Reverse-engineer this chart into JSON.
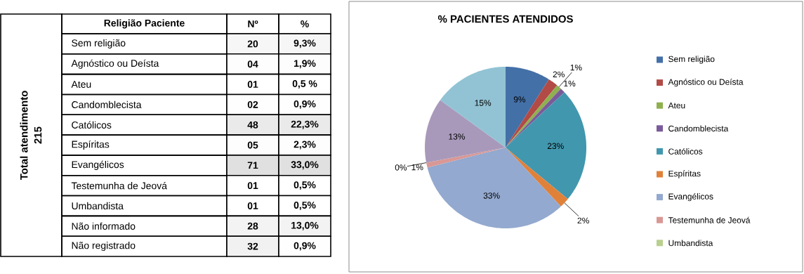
{
  "chart_data": [
    {
      "type": "heatmap",
      "ylabel": "Total atendimento",
      "annotations": [
        "Religião Paciente",
        "215"
      ],
      "categories": [
        "Nº",
        "%"
      ],
      "y_categories": [
        "Sem religião",
        "Agnóstico ou Deísta",
        "Ateu",
        "Candomblecista",
        "Católicos",
        "Espíritas",
        "Evangélicos",
        "Testemunha de Jeová",
        "Umbandista",
        "Não informado",
        "Não registrado"
      ],
      "cells": [
        [
          20,
          9.3
        ],
        [
          4,
          1.9
        ],
        [
          1,
          0.5
        ],
        [
          2,
          0.9
        ],
        [
          48,
          22.3
        ],
        [
          5,
          2.3
        ],
        [
          71,
          33.0
        ],
        [
          1,
          0.5
        ],
        [
          1,
          0.5
        ],
        [
          28,
          13.0
        ],
        [
          32,
          0.9
        ]
      ],
      "cell_labels": [
        [
          "20",
          "9,3%"
        ],
        [
          "04",
          "1,9%"
        ],
        [
          "01",
          "0,5 %"
        ],
        [
          "02",
          "0,9%"
        ],
        [
          "48",
          "22,3%"
        ],
        [
          "05",
          "2,3%"
        ],
        [
          "71",
          "33,0%"
        ],
        [
          "01",
          "0,5%"
        ],
        [
          "01",
          "0,5%"
        ],
        [
          "28",
          "13,0%"
        ],
        [
          "32",
          "0,9%"
        ]
      ]
    },
    {
      "type": "pie",
      "title": "%  PACIENTES ATENDIDOS",
      "legend": "right",
      "categories": [
        "Sem religião",
        "Agnóstico ou Deísta",
        "Ateu",
        "Candomblecista",
        "Católicos",
        "Espíritas",
        "Evangélicos",
        "Testemunha de Jeová",
        "Umbandista",
        null,
        null
      ],
      "values": [
        9,
        2,
        1,
        1,
        23,
        2,
        33,
        1,
        0,
        13,
        15
      ],
      "value_labels": [
        "9%",
        "2%",
        "1%",
        "1%",
        "23%",
        "2%",
        "33%",
        "1%",
        "0%",
        "13%",
        "15%"
      ],
      "colors": [
        "#4470a8",
        "#b24a46",
        "#8fb04f",
        "#7a5b9a",
        "#4197ad",
        "#e0813a",
        "#93a9cf",
        "#d99895",
        "#b8cf8e",
        "#a899bb",
        "#92c3d4"
      ]
    }
  ]
}
